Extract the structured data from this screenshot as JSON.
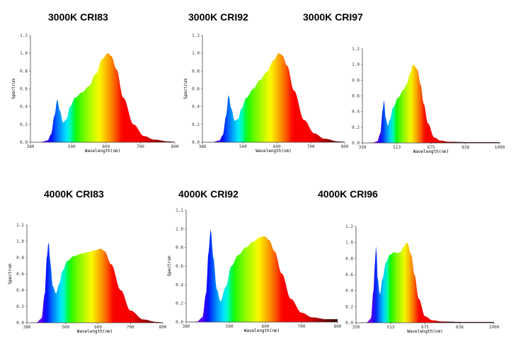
{
  "chart_data": [
    {
      "type": "area",
      "title": "3000K CRI83",
      "xlabel": "Wavelength(nm)",
      "ylabel": "Spectrum",
      "xlim": [
        380,
        800
      ],
      "ylim": [
        0,
        1.2
      ],
      "xticks": [
        "380",
        "500",
        "600",
        "700",
        "800"
      ],
      "yticks": [
        "0.0",
        "0.2",
        "0.4",
        "0.6",
        "0.8",
        "1.0",
        "1.2"
      ],
      "series": [
        {
          "x": [
            380,
            410,
            430,
            440,
            450,
            458,
            465,
            475,
            485,
            495,
            510,
            530,
            550,
            570,
            590,
            605,
            615,
            630,
            650,
            680,
            710,
            740,
            780,
            800
          ],
          "values": [
            0,
            0.003,
            0.02,
            0.09,
            0.3,
            0.48,
            0.36,
            0.22,
            0.26,
            0.4,
            0.5,
            0.56,
            0.63,
            0.77,
            0.94,
            1.0,
            0.97,
            0.82,
            0.5,
            0.2,
            0.07,
            0.03,
            0.01,
            0.005
          ]
        }
      ]
    },
    {
      "type": "area",
      "title": "3000K CRI92",
      "xlabel": "Wavelength(nm)",
      "ylabel": "Spectrum",
      "xlim": [
        380,
        800
      ],
      "ylim": [
        0,
        1.2
      ],
      "xticks": [
        "380",
        "500",
        "600",
        "700",
        "800"
      ],
      "yticks": [
        "0.0",
        "0.2",
        "0.4",
        "0.6",
        "0.8",
        "1.0",
        "1.2"
      ],
      "series": [
        {
          "x": [
            380,
            410,
            430,
            440,
            450,
            457,
            465,
            475,
            485,
            495,
            510,
            530,
            550,
            570,
            590,
            605,
            615,
            630,
            650,
            680,
            710,
            740,
            780,
            800
          ],
          "values": [
            0,
            0.003,
            0.02,
            0.08,
            0.3,
            0.53,
            0.38,
            0.24,
            0.26,
            0.38,
            0.5,
            0.6,
            0.7,
            0.79,
            0.92,
            1.0,
            0.98,
            0.86,
            0.58,
            0.25,
            0.1,
            0.04,
            0.01,
            0.005
          ]
        }
      ]
    },
    {
      "type": "area",
      "title": "3000K CRI97",
      "xlabel": "Wavelength(nm)",
      "ylabel": "",
      "xlim": [
        350,
        1000
      ],
      "ylim": [
        0,
        1.2
      ],
      "xticks": [
        "350",
        "513",
        "675",
        "838",
        "1000"
      ],
      "yticks": [
        "0.0",
        "0.2",
        "0.4",
        "0.6",
        "0.8",
        "1.0",
        "1.2"
      ],
      "series": [
        {
          "x": [
            350,
            400,
            420,
            435,
            445,
            452,
            460,
            470,
            480,
            495,
            520,
            545,
            560,
            575,
            590,
            610,
            625,
            640,
            660,
            690,
            720,
            760,
            850,
            1000
          ],
          "values": [
            0,
            0.005,
            0.02,
            0.12,
            0.4,
            0.55,
            0.32,
            0.22,
            0.3,
            0.45,
            0.58,
            0.68,
            0.75,
            0.88,
            1.0,
            0.94,
            0.75,
            0.5,
            0.25,
            0.07,
            0.03,
            0.015,
            0.01,
            0.01
          ]
        }
      ]
    },
    {
      "type": "area",
      "title": "4000K CRI83",
      "xlabel": "Wavelength(nm)",
      "ylabel": "Spectrum",
      "xlim": [
        380,
        800
      ],
      "ylim": [
        0,
        1.2
      ],
      "xticks": [
        "380",
        "500",
        "600",
        "700",
        "800"
      ],
      "yticks": [
        "0.0",
        "0.2",
        "0.4",
        "0.6",
        "0.8",
        "1.0",
        "1.2"
      ],
      "series": [
        {
          "x": [
            380,
            410,
            425,
            435,
            442,
            447,
            452,
            460,
            470,
            480,
            490,
            505,
            525,
            550,
            570,
            590,
            608,
            620,
            640,
            670,
            700,
            740,
            780,
            800
          ],
          "values": [
            0,
            0.005,
            0.05,
            0.35,
            0.82,
            1.0,
            0.75,
            0.45,
            0.36,
            0.48,
            0.64,
            0.76,
            0.82,
            0.85,
            0.87,
            0.89,
            0.91,
            0.88,
            0.72,
            0.4,
            0.15,
            0.04,
            0.01,
            0.005
          ]
        }
      ]
    },
    {
      "type": "area",
      "title": "4000K CRI92",
      "xlabel": "Wavelength(nm)",
      "ylabel": "Spectrum",
      "xlim": [
        380,
        800
      ],
      "ylim": [
        0,
        1.2
      ],
      "xticks": [
        "380",
        "500",
        "600",
        "700",
        "800"
      ],
      "yticks": [
        "0.0",
        "0.2",
        "0.4",
        "0.6",
        "0.8",
        "1.0",
        "1.2"
      ],
      "series": [
        {
          "x": [
            380,
            410,
            425,
            435,
            442,
            448,
            455,
            465,
            475,
            490,
            505,
            525,
            545,
            565,
            585,
            598,
            610,
            625,
            645,
            670,
            700,
            730,
            770,
            800
          ],
          "values": [
            0,
            0.005,
            0.05,
            0.3,
            0.75,
            1.0,
            0.7,
            0.35,
            0.22,
            0.38,
            0.6,
            0.72,
            0.8,
            0.86,
            0.91,
            0.92,
            0.88,
            0.76,
            0.52,
            0.25,
            0.1,
            0.05,
            0.03,
            0.03
          ]
        }
      ]
    },
    {
      "type": "area",
      "title": "4000K CRI96",
      "xlabel": "Wavelength(nm)",
      "ylabel": "",
      "xlim": [
        350,
        1000
      ],
      "ylim": [
        0,
        1.2
      ],
      "xticks": [
        "350",
        "513",
        "675",
        "838",
        "1000"
      ],
      "yticks": [
        "0.0",
        "0.2",
        "0.4",
        "0.6",
        "0.8",
        "1.0",
        "1.2"
      ],
      "series": [
        {
          "x": [
            350,
            400,
            420,
            432,
            440,
            445,
            452,
            462,
            475,
            490,
            510,
            530,
            545,
            560,
            575,
            590,
            610,
            625,
            645,
            675,
            710,
            760,
            850,
            1000
          ],
          "values": [
            0,
            0.005,
            0.05,
            0.4,
            0.8,
            0.97,
            0.55,
            0.35,
            0.55,
            0.75,
            0.85,
            0.88,
            0.87,
            0.88,
            0.95,
            1.0,
            0.85,
            0.6,
            0.3,
            0.08,
            0.03,
            0.015,
            0.01,
            0.01
          ]
        }
      ]
    }
  ]
}
